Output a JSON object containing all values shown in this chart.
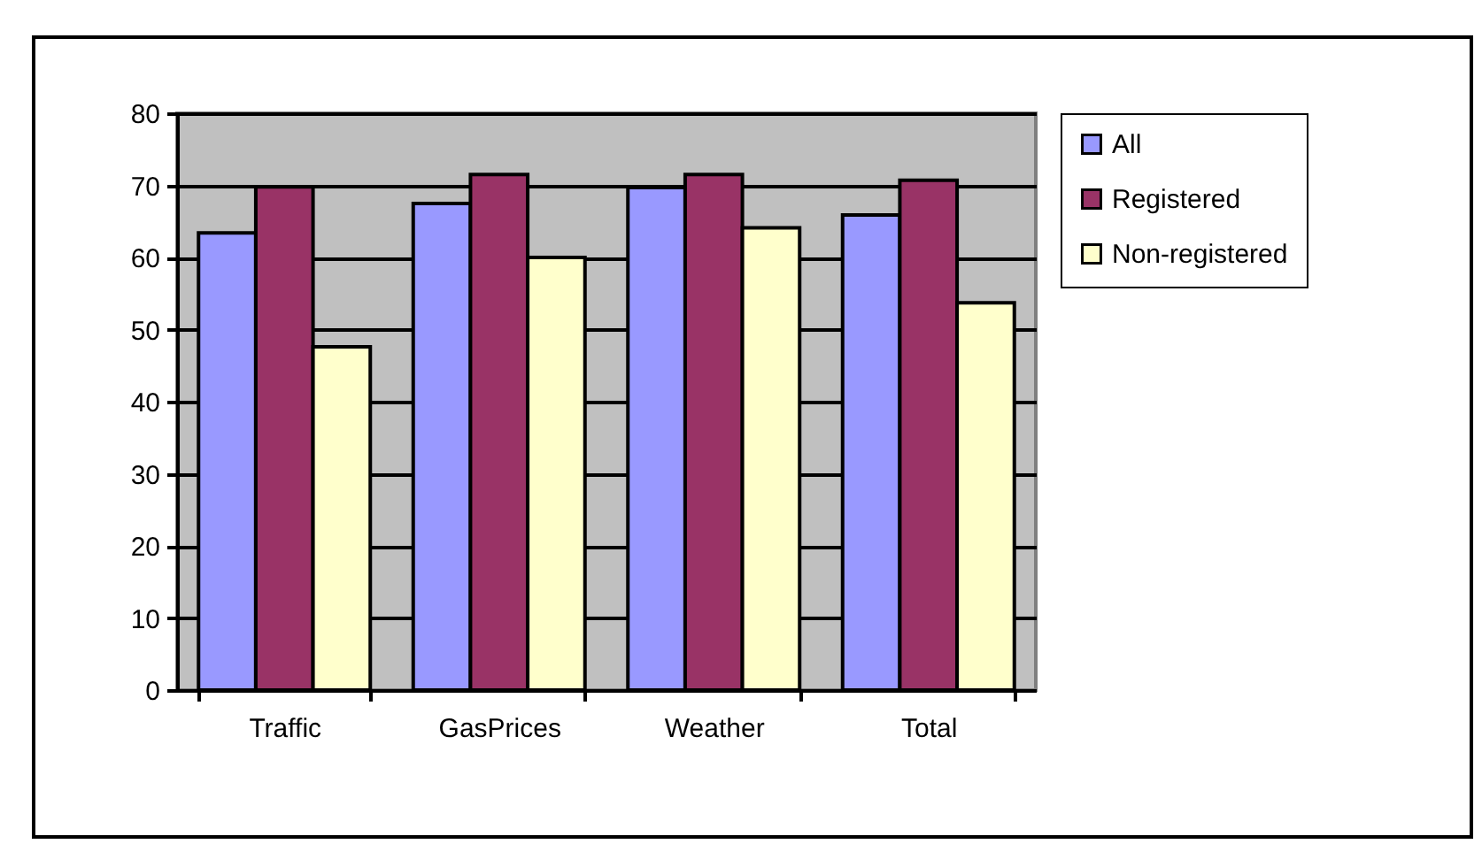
{
  "chart_data": {
    "type": "bar",
    "categories": [
      "Traffic",
      "GasPrices",
      "Weather",
      "Total"
    ],
    "series": [
      {
        "name": "All",
        "color": "#9999ff",
        "values": [
          63.4,
          67.5,
          69.7,
          65.9
        ]
      },
      {
        "name": "Registered",
        "color": "#993366",
        "values": [
          69.8,
          71.5,
          71.5,
          70.7
        ]
      },
      {
        "name": "Non-registered",
        "color": "#ffffcc",
        "values": [
          47.6,
          60,
          64.1,
          53.7
        ]
      }
    ],
    "ylim": [
      0,
      80
    ],
    "yticks": [
      0,
      10,
      20,
      30,
      40,
      50,
      60,
      70,
      80
    ],
    "grid": "y",
    "legend": "right"
  }
}
